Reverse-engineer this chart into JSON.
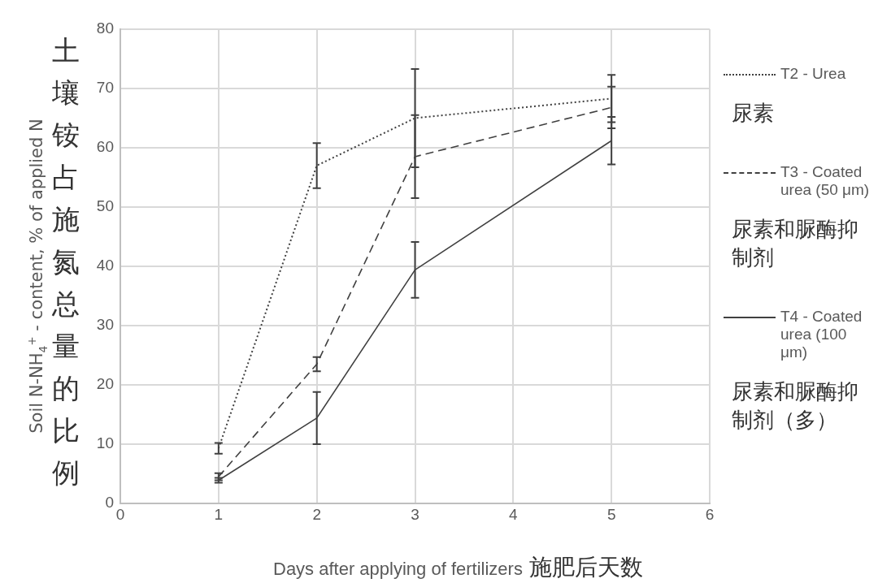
{
  "chart_data": {
    "type": "line",
    "xlabel": "Days after applying of fertilizers",
    "ylabel": "Soil N-NH$_{4}$$^{+}$ - content, % of applied N",
    "x": [
      1,
      2,
      3,
      5
    ],
    "series": [
      {
        "name": "T2 - Urea",
        "color": "#404040",
        "line_style": "dotted",
        "values": [
          9.3,
          57,
          65,
          68.3
        ],
        "errors": [
          0.9,
          3.8,
          8.3,
          4
        ]
      },
      {
        "name": "T3 - Coated urea (50 μm)",
        "color": "#404040",
        "line_style": "dashed",
        "values": [
          4.5,
          23.5,
          58.5,
          66.8
        ],
        "errors": [
          0.6,
          1.2,
          7,
          3.5
        ]
      },
      {
        "name": "T4 - Coated urea (100 μm)",
        "color": "#404040",
        "line_style": "solid",
        "values": [
          3.9,
          14.4,
          39.4,
          61.2
        ],
        "errors": [
          0.4,
          4.4,
          4.7,
          4
        ]
      }
    ],
    "xlim": [
      0,
      6
    ],
    "xticks": [
      0,
      1,
      2,
      3,
      4,
      5,
      6
    ],
    "ylim": [
      0,
      80
    ],
    "yticks": [
      0,
      10,
      20,
      30,
      40,
      50,
      60,
      70,
      80
    ],
    "grid": true,
    "legend": "right",
    "marker": "none",
    "annotations": [
      "土壤铵占施氮总量的比例",
      "施肥后天数",
      "尿素",
      "尿素和脲酶抑制剂",
      "尿素和脲酶抑制剂（多）"
    ]
  }
}
